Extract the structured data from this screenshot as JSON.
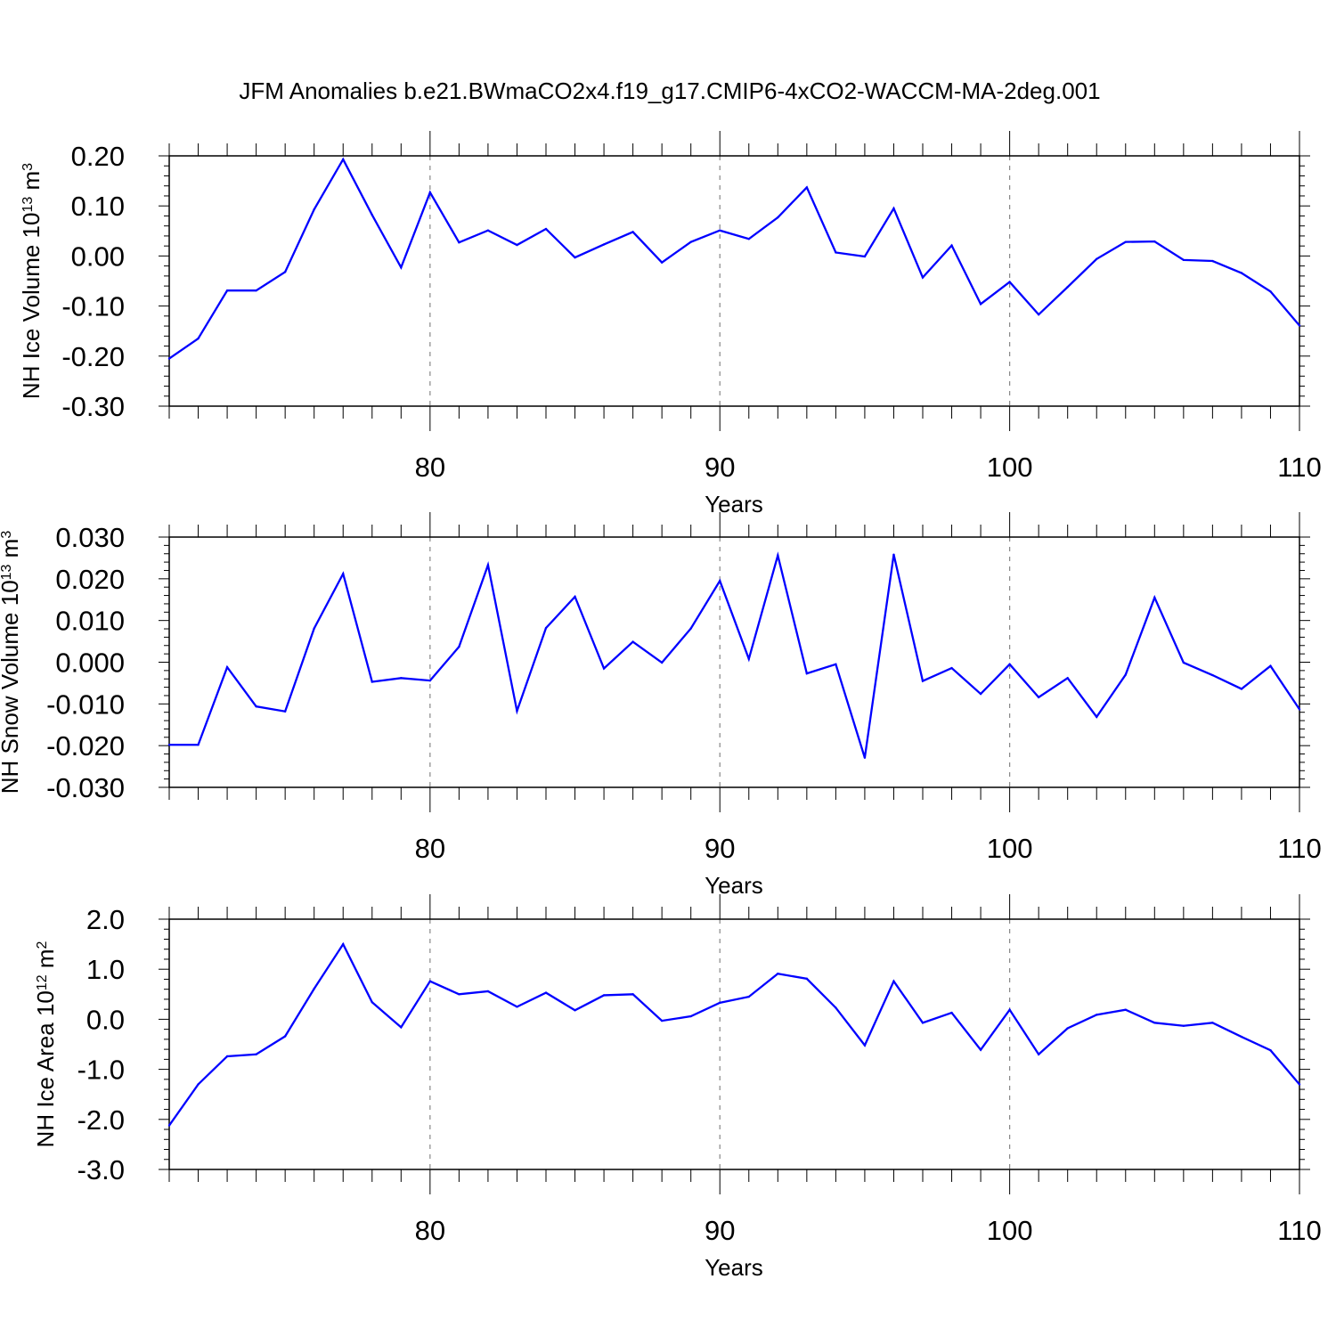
{
  "title": "JFM Anomalies b.e21.BWmaCO2x4.f19_g17.CMIP6-4xCO2-WACCM-MA-2deg.001",
  "colors": {
    "line": "#0000ff",
    "axis": "#000000",
    "grid": "#888888"
  },
  "chart_data": [
    {
      "type": "line",
      "title": "JFM Anomalies b.e21.BWmaCO2x4.f19_g17.CMIP6-4xCO2-WACCM-MA-2deg.001",
      "xlabel": "Years",
      "ylabel": {
        "main": "NH Ice Volume 10",
        "sup1": "13",
        "mid": " m",
        "sup2": "3"
      },
      "xlim": [
        71,
        110
      ],
      "ylim": [
        -0.3,
        0.2
      ],
      "xticks": [
        80,
        90,
        100,
        110
      ],
      "xtick_labels": [
        "80",
        "90",
        "100",
        "110"
      ],
      "yticks": [
        -0.3,
        -0.2,
        -0.1,
        0.0,
        0.1,
        0.2
      ],
      "ytick_labels": [
        "-0.30",
        "-0.20",
        "-0.10",
        "0.00",
        "0.10",
        "0.20"
      ],
      "grid": "x-dashed",
      "x": [
        71,
        72,
        73,
        74,
        75,
        76,
        77,
        78,
        79,
        80,
        81,
        82,
        83,
        84,
        85,
        86,
        87,
        88,
        89,
        90,
        91,
        92,
        93,
        94,
        95,
        96,
        97,
        98,
        99,
        100,
        101,
        102,
        103,
        104,
        105,
        106,
        107,
        108,
        109,
        110
      ],
      "values": [
        -0.205,
        -0.165,
        -0.069,
        -0.069,
        -0.032,
        0.093,
        0.193,
        0.082,
        -0.023,
        0.127,
        0.027,
        0.051,
        0.022,
        0.054,
        -0.003,
        0.023,
        0.048,
        -0.013,
        0.028,
        0.051,
        0.034,
        0.077,
        0.137,
        0.007,
        -0.001,
        0.095,
        -0.043,
        0.021,
        -0.096,
        -0.052,
        -0.117,
        -0.062,
        -0.006,
        0.028,
        0.029,
        -0.008,
        -0.01,
        -0.034,
        -0.071,
        -0.139
      ]
    },
    {
      "type": "line",
      "xlabel": "Years",
      "ylabel": {
        "main": "NH Snow Volume 10",
        "sup1": "13",
        "mid": " m",
        "sup2": "3"
      },
      "xlim": [
        71,
        110
      ],
      "ylim": [
        -0.03,
        0.03
      ],
      "xticks": [
        80,
        90,
        100,
        110
      ],
      "xtick_labels": [
        "80",
        "90",
        "100",
        "110"
      ],
      "yticks": [
        -0.03,
        -0.02,
        -0.01,
        0.0,
        0.01,
        0.02,
        0.03
      ],
      "ytick_labels": [
        "-0.030",
        "-0.020",
        "-0.010",
        "0.000",
        "0.010",
        "0.020",
        "0.030"
      ],
      "grid": "x-dashed",
      "x": [
        71,
        72,
        73,
        74,
        75,
        76,
        77,
        78,
        79,
        80,
        81,
        82,
        83,
        84,
        85,
        86,
        87,
        88,
        89,
        90,
        91,
        92,
        93,
        94,
        95,
        96,
        97,
        98,
        99,
        100,
        101,
        102,
        103,
        104,
        105,
        106,
        107,
        108,
        109,
        110
      ],
      "values": [
        -0.0198,
        -0.0198,
        -0.0012,
        -0.0106,
        -0.0118,
        0.0081,
        0.0212,
        -0.0047,
        -0.0038,
        -0.0044,
        0.0037,
        0.0233,
        -0.0117,
        0.0082,
        0.0157,
        -0.0015,
        0.0049,
        -0.0001,
        0.0081,
        0.0195,
        0.0008,
        0.0256,
        -0.0027,
        -0.0005,
        -0.0229,
        0.0258,
        -0.0045,
        -0.0014,
        -0.0076,
        -0.0005,
        -0.0084,
        -0.0038,
        -0.0131,
        -0.003,
        0.0155,
        -0.0001,
        -0.0031,
        -0.0064,
        -0.0009,
        -0.0113
      ]
    },
    {
      "type": "line",
      "xlabel": "Years",
      "ylabel": {
        "main": "NH Ice Area 10",
        "sup1": "12",
        "mid": " m",
        "sup2": "2"
      },
      "xlim": [
        71,
        110
      ],
      "ylim": [
        -3.0,
        2.0
      ],
      "xticks": [
        80,
        90,
        100,
        110
      ],
      "xtick_labels": [
        "80",
        "90",
        "100",
        "110"
      ],
      "yticks": [
        -3.0,
        -2.0,
        -1.0,
        0.0,
        1.0,
        2.0
      ],
      "ytick_labels": [
        "-3.0",
        "-2.0",
        "-1.0",
        "0.0",
        "1.0",
        "2.0"
      ],
      "grid": "x-dashed",
      "x": [
        71,
        72,
        73,
        74,
        75,
        76,
        77,
        78,
        79,
        80,
        81,
        82,
        83,
        84,
        85,
        86,
        87,
        88,
        89,
        90,
        91,
        92,
        93,
        94,
        95,
        96,
        97,
        98,
        99,
        100,
        101,
        102,
        103,
        104,
        105,
        106,
        107,
        108,
        109,
        110
      ],
      "values": [
        -2.12,
        -1.3,
        -0.74,
        -0.7,
        -0.34,
        0.61,
        1.5,
        0.34,
        -0.16,
        0.76,
        0.5,
        0.56,
        0.25,
        0.53,
        0.18,
        0.48,
        0.5,
        -0.03,
        0.06,
        0.33,
        0.45,
        0.91,
        0.81,
        0.23,
        -0.52,
        0.76,
        -0.07,
        0.13,
        -0.61,
        0.19,
        -0.7,
        -0.18,
        0.09,
        0.19,
        -0.07,
        -0.13,
        -0.07,
        -0.35,
        -0.62,
        -1.3
      ]
    }
  ]
}
